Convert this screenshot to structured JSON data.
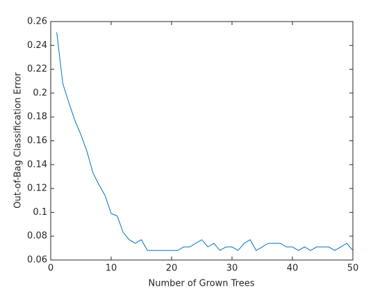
{
  "chart_data": {
    "type": "line",
    "xlabel": "Number of Grown Trees",
    "ylabel": "Out-of-Bag Classification Error",
    "x": [
      1,
      2,
      3,
      4,
      5,
      6,
      7,
      8,
      9,
      10,
      11,
      12,
      13,
      14,
      15,
      16,
      17,
      18,
      19,
      20,
      21,
      22,
      23,
      24,
      25,
      26,
      27,
      28,
      29,
      30,
      31,
      32,
      33,
      34,
      35,
      36,
      37,
      38,
      39,
      40,
      41,
      42,
      43,
      44,
      45,
      46,
      47,
      48,
      49,
      50
    ],
    "series": [
      {
        "color": "#0072bd",
        "values": [
          0.251,
          0.208,
          0.192,
          0.177,
          0.165,
          0.151,
          0.133,
          0.123,
          0.114,
          0.099,
          0.097,
          0.083,
          0.077,
          0.074,
          0.077,
          0.068,
          0.068,
          0.068,
          0.068,
          0.068,
          0.068,
          0.071,
          0.071,
          0.074,
          0.077,
          0.071,
          0.074,
          0.068,
          0.071,
          0.071,
          0.068,
          0.074,
          0.077,
          0.068,
          0.071,
          0.074,
          0.074,
          0.074,
          0.071,
          0.071,
          0.068,
          0.071,
          0.068,
          0.071,
          0.071,
          0.071,
          0.068,
          0.071,
          0.074,
          0.068
        ]
      }
    ],
    "xlim": [
      0,
      50
    ],
    "xticks": [
      0,
      10,
      20,
      30,
      40,
      50
    ],
    "ylim": [
      0.06,
      0.26
    ],
    "yticks": [
      0.06,
      0.08,
      0.1,
      0.12,
      0.14,
      0.16,
      0.18,
      0.2,
      0.22,
      0.24,
      0.26
    ]
  }
}
